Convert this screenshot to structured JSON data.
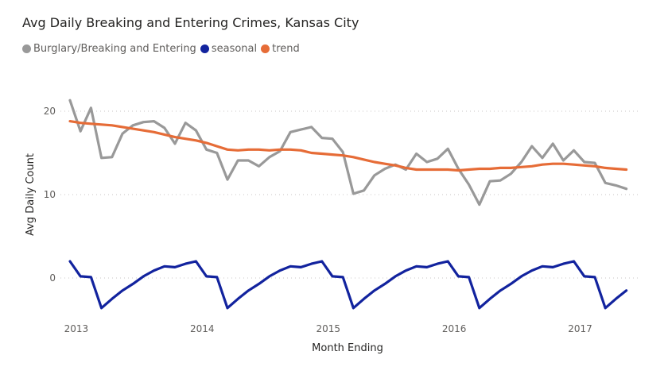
{
  "chart_data": {
    "type": "line",
    "title": "Avg Daily Breaking and Entering Crimes, Kansas City",
    "xlabel": "Month Ending",
    "ylabel": "Avg Daily Count",
    "ylim": [
      -4.5,
      23
    ],
    "yticks": [
      0,
      10,
      20
    ],
    "grid": true,
    "legend_position": "top-left",
    "x_start": "2012-12",
    "x_tick_labels": [
      {
        "label": "2013",
        "month_index": 0.6
      },
      {
        "label": "2014",
        "month_index": 12.6
      },
      {
        "label": "2015",
        "month_index": 24.6
      },
      {
        "label": "2016",
        "month_index": 36.6
      },
      {
        "label": "2017",
        "month_index": 48.6
      }
    ],
    "x": [
      "2012-12",
      "2013-01",
      "2013-02",
      "2013-03",
      "2013-04",
      "2013-05",
      "2013-06",
      "2013-07",
      "2013-08",
      "2013-09",
      "2013-10",
      "2013-11",
      "2013-12",
      "2014-01",
      "2014-02",
      "2014-03",
      "2014-04",
      "2014-05",
      "2014-06",
      "2014-07",
      "2014-08",
      "2014-09",
      "2014-10",
      "2014-11",
      "2014-12",
      "2015-01",
      "2015-02",
      "2015-03",
      "2015-04",
      "2015-05",
      "2015-06",
      "2015-07",
      "2015-08",
      "2015-09",
      "2015-10",
      "2015-11",
      "2015-12",
      "2016-01",
      "2016-02",
      "2016-03",
      "2016-04",
      "2016-05",
      "2016-06",
      "2016-07",
      "2016-08",
      "2016-09",
      "2016-10",
      "2016-11",
      "2016-12",
      "2017-01",
      "2017-02",
      "2017-03",
      "2017-04",
      "2017-05"
    ],
    "series": [
      {
        "name": "Burglary/Breaking and Entering",
        "color": "#999999",
        "values": [
          21.3,
          17.6,
          20.4,
          14.4,
          14.5,
          17.3,
          18.3,
          18.7,
          18.8,
          18.0,
          16.1,
          18.6,
          17.7,
          15.4,
          15.0,
          11.8,
          14.1,
          14.1,
          13.4,
          14.5,
          15.2,
          17.5,
          17.8,
          18.1,
          16.8,
          16.7,
          15.1,
          10.1,
          10.5,
          12.3,
          13.1,
          13.6,
          13.0,
          14.9,
          13.9,
          14.3,
          15.5,
          13.1,
          11.2,
          8.8,
          11.6,
          11.7,
          12.5,
          13.9,
          15.8,
          14.4,
          16.1,
          14.1,
          15.3,
          13.9,
          13.8,
          11.4,
          11.1,
          10.7
        ]
      },
      {
        "name": "seasonal",
        "color": "#12239E",
        "values": [
          2.0,
          0.2,
          0.1,
          -3.6,
          -2.5,
          -1.5,
          -0.7,
          0.2,
          0.9,
          1.4,
          1.3,
          1.7,
          2.0,
          0.2,
          0.1,
          -3.6,
          -2.5,
          -1.5,
          -0.7,
          0.2,
          0.9,
          1.4,
          1.3,
          1.7,
          2.0,
          0.2,
          0.1,
          -3.6,
          -2.5,
          -1.5,
          -0.7,
          0.2,
          0.9,
          1.4,
          1.3,
          1.7,
          2.0,
          0.2,
          0.1,
          -3.6,
          -2.5,
          -1.5,
          -0.7,
          0.2,
          0.9,
          1.4,
          1.3,
          1.7,
          2.0,
          0.2,
          0.1,
          -3.6,
          -2.5,
          -1.5
        ]
      },
      {
        "name": "trend",
        "color": "#E66C37",
        "values": [
          18.8,
          18.6,
          18.5,
          18.4,
          18.3,
          18.1,
          17.9,
          17.7,
          17.5,
          17.2,
          16.9,
          16.7,
          16.5,
          16.2,
          15.8,
          15.4,
          15.3,
          15.4,
          15.4,
          15.3,
          15.4,
          15.4,
          15.3,
          15.0,
          14.9,
          14.8,
          14.7,
          14.5,
          14.2,
          13.9,
          13.7,
          13.5,
          13.2,
          13.0,
          13.0,
          13.0,
          13.0,
          12.9,
          13.0,
          13.1,
          13.1,
          13.2,
          13.2,
          13.3,
          13.4,
          13.6,
          13.7,
          13.7,
          13.6,
          13.5,
          13.4,
          13.2,
          13.1,
          13.0
        ]
      }
    ]
  }
}
